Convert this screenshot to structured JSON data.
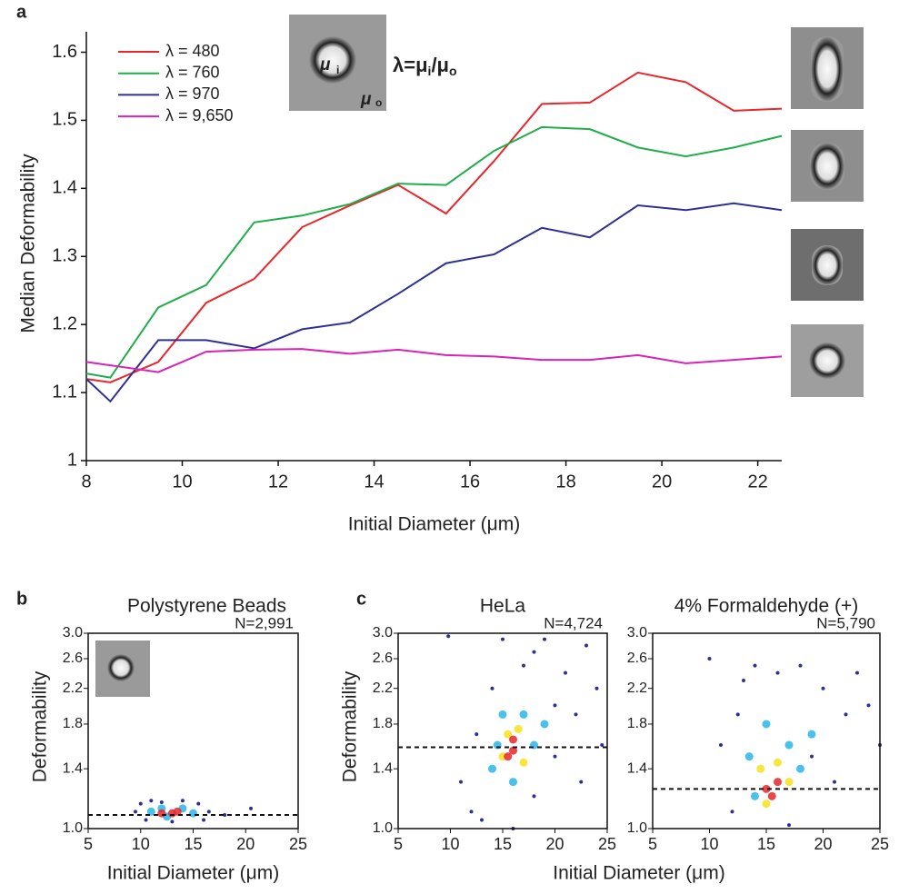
{
  "chart_data": [
    {
      "type": "line",
      "panel": "a",
      "ylabel": "Median Deformability",
      "xlabel": "Initial Diameter (μm)",
      "annotation": [
        "λ=μ",
        "i",
        "/μ",
        "o"
      ],
      "inset_labels": [
        "μ",
        "i",
        "μ",
        "o"
      ],
      "xlim": [
        8,
        22.5
      ],
      "ylim": [
        1,
        1.63
      ],
      "xticks": [
        8,
        10,
        12,
        14,
        16,
        18,
        20,
        22
      ],
      "yticks": [
        1,
        1.1,
        1.2,
        1.3,
        1.4,
        1.5,
        1.6
      ],
      "x": [
        8,
        8.5,
        9.5,
        10.5,
        11.5,
        12.5,
        13.5,
        14.5,
        15.5,
        16.5,
        17.5,
        18.5,
        19.5,
        20.5,
        21.5,
        22.5
      ],
      "series": [
        {
          "name": "λ = 480",
          "color": "#e8262b",
          "values": [
            1.12,
            1.115,
            1.145,
            1.232,
            1.267,
            1.343,
            1.375,
            1.405,
            1.363,
            1.44,
            1.524,
            1.526,
            1.57,
            1.556,
            1.514,
            1.517
          ]
        },
        {
          "name": "λ = 760",
          "color": "#1fae4a",
          "values": [
            1.128,
            1.122,
            1.225,
            1.258,
            1.35,
            1.36,
            1.377,
            1.407,
            1.405,
            1.455,
            1.49,
            1.487,
            1.46,
            1.447,
            1.46,
            1.477
          ]
        },
        {
          "name": "λ = 970",
          "color": "#2e3192",
          "values": [
            1.12,
            1.087,
            1.177,
            1.177,
            1.165,
            1.193,
            1.203,
            1.245,
            1.29,
            1.303,
            1.342,
            1.328,
            1.375,
            1.368,
            1.378,
            1.368
          ]
        },
        {
          "name": "λ = 9,650",
          "color": "#d923b4",
          "values": [
            1.145,
            1.14,
            1.13,
            1.16,
            1.163,
            1.164,
            1.157,
            1.163,
            1.155,
            1.153,
            1.148,
            1.148,
            1.155,
            1.143,
            1.148,
            1.153
          ]
        }
      ]
    },
    {
      "type": "scatter",
      "panel": "b",
      "title": "Polystyrene Beads",
      "annotation": "N=2,991",
      "ylabel": "Deformability",
      "xlabel": "Initial Diameter (μm)",
      "xlim": [
        5,
        25
      ],
      "ylim": [
        1,
        3
      ],
      "log_y": true,
      "xticks": [
        5,
        10,
        15,
        20,
        25
      ],
      "yticks": [
        {
          "value": 1,
          "label": "1.0"
        },
        1.4,
        1.8,
        2.2,
        2.6,
        {
          "value": 3,
          "label": "3.0"
        }
      ],
      "median": 1.08,
      "series": [
        {
          "color": "#2e3192",
          "x": [
            9.5,
            10,
            11,
            12,
            14,
            15.5,
            16.5,
            16,
            13,
            10.5,
            20.5,
            18
          ],
          "y": [
            1.1,
            1.15,
            1.17,
            1.16,
            1.17,
            1.15,
            1.1,
            1.05,
            1.04,
            1.05,
            1.12,
            1.08
          ]
        },
        {
          "color": "#29b6e6",
          "x": [
            11,
            12,
            14,
            15,
            12.5
          ],
          "y": [
            1.1,
            1.12,
            1.12,
            1.09,
            1.07
          ]
        },
        {
          "color": "#e8262b",
          "x": [
            12,
            13,
            13.5
          ],
          "y": [
            1.09,
            1.09,
            1.1
          ]
        }
      ]
    },
    {
      "type": "scatter",
      "panel": "c",
      "title": "HeLa",
      "annotation": "N=4,724",
      "ylabel": "Deformability",
      "xlabel": "Initial Diameter (μm)",
      "xlim": [
        5,
        25
      ],
      "ylim": [
        1,
        3
      ],
      "log_y": true,
      "xticks": [
        5,
        10,
        15,
        20,
        25
      ],
      "yticks": [
        {
          "value": 1,
          "label": "1.0"
        },
        1.4,
        1.8,
        2.2,
        2.6,
        {
          "value": 3,
          "label": "3.0"
        }
      ],
      "median": 1.58,
      "series": [
        {
          "color": "#2e3192",
          "x": [
            9.8,
            11,
            12,
            13,
            14,
            15,
            17,
            18,
            19,
            20,
            21,
            22,
            23,
            24,
            24.5,
            12.5,
            16,
            20,
            22.5,
            18
          ],
          "y": [
            2.95,
            1.3,
            1.1,
            1.05,
            2.2,
            2.9,
            2.5,
            1.2,
            2.9,
            1.5,
            2.4,
            1.9,
            2.8,
            2.2,
            1.6,
            1.7,
            1.0,
            2.0,
            1.3,
            2.7
          ]
        },
        {
          "color": "#29b6e6",
          "x": [
            14,
            15,
            17,
            18,
            16,
            19,
            14.5
          ],
          "y": [
            1.4,
            1.9,
            1.9,
            1.6,
            1.3,
            1.8,
            1.6
          ]
        },
        {
          "color": "#f7e21b",
          "x": [
            15,
            16.5,
            17,
            15.5
          ],
          "y": [
            1.5,
            1.75,
            1.45,
            1.7
          ]
        },
        {
          "color": "#e8262b",
          "x": [
            16,
            16,
            15.5
          ],
          "y": [
            1.55,
            1.65,
            1.5
          ]
        }
      ]
    },
    {
      "type": "scatter",
      "title": "4% Formaldehyde (+)",
      "annotation": "N=5,790",
      "xlim": [
        5,
        25
      ],
      "ylim": [
        1,
        3
      ],
      "log_y": true,
      "xticks": [
        5,
        10,
        15,
        20,
        25
      ],
      "yticks": [
        {
          "value": 1,
          "label": "1.0"
        },
        1.4,
        1.8,
        2.2,
        2.6,
        {
          "value": 3,
          "label": "3.0"
        }
      ],
      "median": 1.25,
      "series": [
        {
          "color": "#2e3192",
          "x": [
            10,
            11,
            12,
            13,
            14,
            16,
            18,
            20,
            22,
            24,
            25,
            21,
            17,
            19,
            23,
            12.5
          ],
          "y": [
            2.6,
            1.6,
            1.1,
            2.3,
            2.5,
            2.4,
            2.5,
            2.2,
            1.9,
            2.0,
            1.6,
            1.3,
            1.02,
            1.5,
            2.4,
            1.9
          ]
        },
        {
          "color": "#29b6e6",
          "x": [
            13.5,
            15,
            17,
            18,
            14,
            19
          ],
          "y": [
            1.5,
            1.8,
            1.6,
            1.4,
            1.2,
            1.7
          ]
        },
        {
          "color": "#f7e21b",
          "x": [
            14.5,
            16,
            17,
            15
          ],
          "y": [
            1.4,
            1.45,
            1.3,
            1.15
          ]
        },
        {
          "color": "#e8262b",
          "x": [
            15,
            16,
            15.5
          ],
          "y": [
            1.25,
            1.3,
            1.2
          ]
        }
      ]
    }
  ]
}
